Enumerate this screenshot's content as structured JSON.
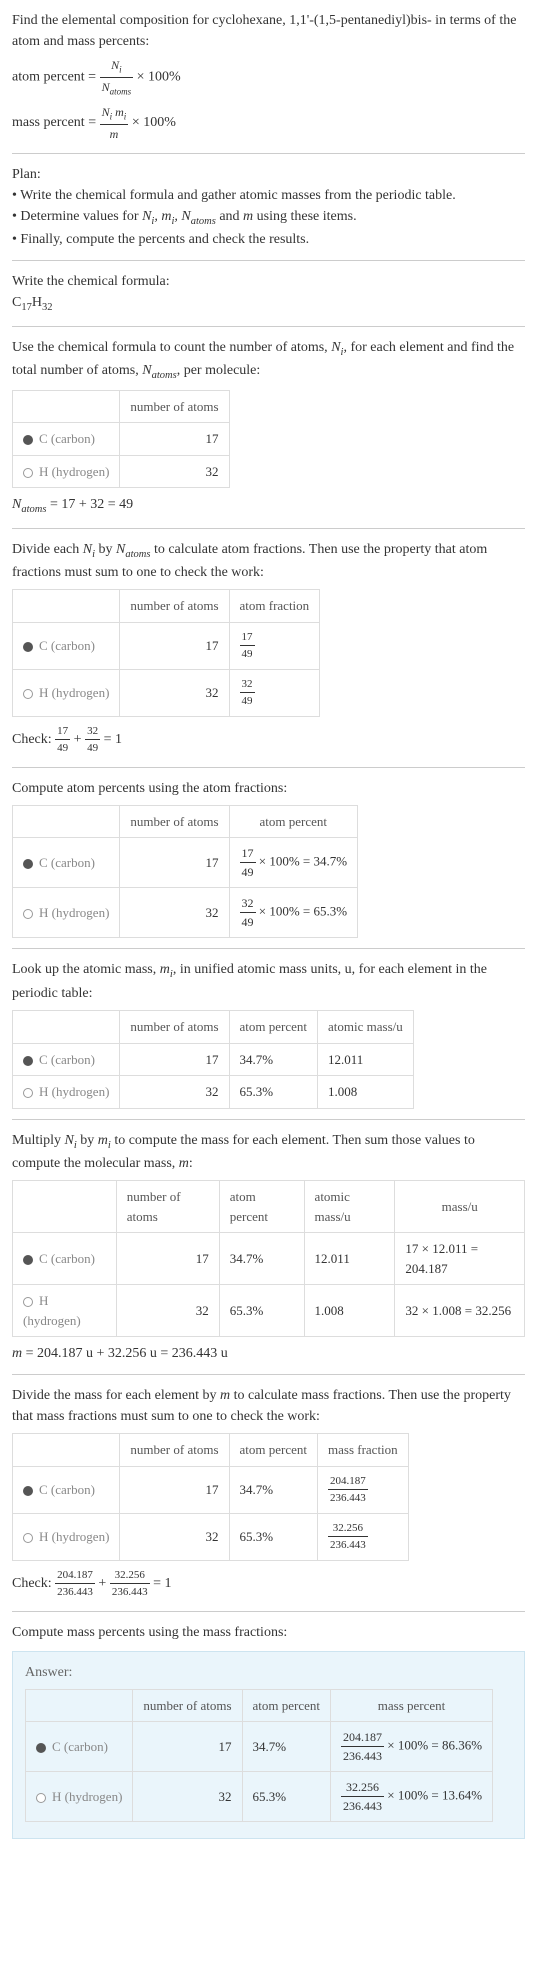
{
  "intro": {
    "title": "Find the elemental composition for cyclohexane, 1,1'-(1,5-pentanediyl)bis- in terms of the atom and mass percents:",
    "atom_percent_label": "atom percent = ",
    "atom_percent_num": "N_i",
    "atom_percent_den": "N_atoms",
    "times100": " × 100%",
    "mass_percent_label": "mass percent = ",
    "mass_percent_num": "N_i m_i",
    "mass_percent_den": "m"
  },
  "plan": {
    "heading": "Plan:",
    "line1": "• Write the chemical formula and gather atomic masses from the periodic table.",
    "line2_pre": "• Determine values for ",
    "line2_vars": "N_i, m_i, N_atoms",
    "line2_mid": " and ",
    "line2_m": "m",
    "line2_post": " using these items.",
    "line3": "• Finally, compute the percents and check the results."
  },
  "chemformula": {
    "heading": "Write the chemical formula:",
    "c": "C",
    "c_sub": "17",
    "h": "H",
    "h_sub": "32"
  },
  "count": {
    "text_pre": "Use the chemical formula to count the number of atoms, ",
    "ni": "N_i",
    "text_mid": ", for each element and find the total number of atoms, ",
    "natoms": "N_atoms",
    "text_post": ", per molecule:",
    "col_num": "number of atoms",
    "c_label": "C (carbon)",
    "c_count": "17",
    "h_label": "H (hydrogen)",
    "h_count": "32",
    "sum_label": "N_atoms",
    "sum_expr": " = 17 + 32 = 49"
  },
  "atomfrac": {
    "text_pre": "Divide each ",
    "ni": "N_i",
    "text_mid": " by ",
    "natoms": "N_atoms",
    "text_post": " to calculate atom fractions. Then use the property that atom fractions must sum to one to check the work:",
    "col_num": "number of atoms",
    "col_frac": "atom fraction",
    "c_label": "C (carbon)",
    "c_count": "17",
    "c_frac_num": "17",
    "c_frac_den": "49",
    "h_label": "H (hydrogen)",
    "h_count": "32",
    "h_frac_num": "32",
    "h_frac_den": "49",
    "check_label": "Check: ",
    "check_end": " = 1"
  },
  "atompct": {
    "heading": "Compute atom percents using the atom fractions:",
    "col_num": "number of atoms",
    "col_pct": "atom percent",
    "c_label": "C (carbon)",
    "c_count": "17",
    "c_frac_num": "17",
    "c_frac_den": "49",
    "c_result": " × 100% = 34.7%",
    "h_label": "H (hydrogen)",
    "h_count": "32",
    "h_frac_num": "32",
    "h_frac_den": "49",
    "h_result": " × 100% = 65.3%"
  },
  "atomicmass": {
    "text_pre": "Look up the atomic mass, ",
    "mi": "m_i",
    "text_post": ", in unified atomic mass units, u, for each element in the periodic table:",
    "col_num": "number of atoms",
    "col_pct": "atom percent",
    "col_mass": "atomic mass/u",
    "c_label": "C (carbon)",
    "c_count": "17",
    "c_pct": "34.7%",
    "c_mass": "12.011",
    "h_label": "H (hydrogen)",
    "h_count": "32",
    "h_pct": "65.3%",
    "h_mass": "1.008"
  },
  "multiply": {
    "text_pre": "Multiply ",
    "ni": "N_i",
    "text_mid": " by ",
    "mi": "m_i",
    "text_mid2": " to compute the mass for each element. Then sum those values to compute the molecular mass, ",
    "m": "m",
    "text_post": ":",
    "col_num": "number of atoms",
    "col_pct": "atom percent",
    "col_mass": "atomic mass/u",
    "col_massu": "mass/u",
    "c_label": "C (carbon)",
    "c_count": "17",
    "c_pct": "34.7%",
    "c_mass": "12.011",
    "c_calc": "17 × 12.011 = 204.187",
    "h_label": "H (hydrogen)",
    "h_count": "32",
    "h_pct": "65.3%",
    "h_mass": "1.008",
    "h_calc": "32 × 1.008 = 32.256",
    "sum": "m = 204.187 u + 32.256 u = 236.443 u"
  },
  "massfrac": {
    "text_pre": "Divide the mass for each element by ",
    "m": "m",
    "text_post": " to calculate mass fractions. Then use the property that mass fractions must sum to one to check the work:",
    "col_num": "number of atoms",
    "col_pct": "atom percent",
    "col_frac": "mass fraction",
    "c_label": "C (carbon)",
    "c_count": "17",
    "c_pct": "34.7%",
    "c_frac_num": "204.187",
    "c_frac_den": "236.443",
    "h_label": "H (hydrogen)",
    "h_count": "32",
    "h_pct": "65.3%",
    "h_frac_num": "32.256",
    "h_frac_den": "236.443",
    "check_label": "Check: ",
    "check_end": " = 1"
  },
  "masspct": {
    "heading": "Compute mass percents using the mass fractions:"
  },
  "answer": {
    "label": "Answer:",
    "col_num": "number of atoms",
    "col_pct": "atom percent",
    "col_mass": "mass percent",
    "c_label": "C (carbon)",
    "c_count": "17",
    "c_pct": "34.7%",
    "c_frac_num": "204.187",
    "c_frac_den": "236.443",
    "c_result": " × 100% = 86.36%",
    "h_label": "H (hydrogen)",
    "h_count": "32",
    "h_pct": "65.3%",
    "h_frac_num": "32.256",
    "h_frac_den": "236.443",
    "h_result": " × 100% = 13.64%"
  }
}
